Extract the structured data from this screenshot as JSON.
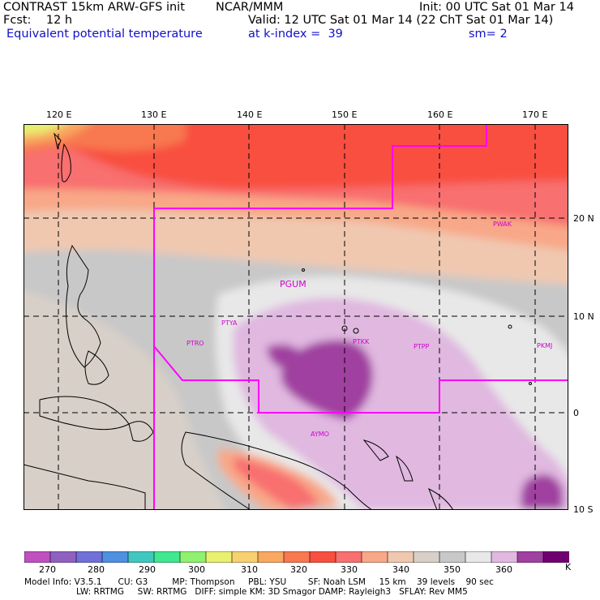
{
  "header": {
    "line1_left": "CONTRAST 15km ARW-GFS init",
    "line1_mid": "NCAR/MMM",
    "line1_right": "Init: 00 UTC Sat 01 Mar 14",
    "line2_left": "Fcst:    12 h",
    "line2_right": "Valid: 12 UTC Sat 01 Mar 14 (22 ChT Sat 01 Mar 14)",
    "line3_left": "Equivalent potential temperature",
    "line3_mid": "at k-index =  39",
    "line3_right": "sm= 2"
  },
  "map": {
    "lon_labels": [
      "120 E",
      "130 E",
      "140 E",
      "150 E",
      "160 E",
      "170 E"
    ],
    "lat_labels": [
      "20 N",
      "10 N",
      "0",
      "10 S"
    ],
    "stations": [
      {
        "name": "PWAK"
      },
      {
        "name": "PGUM"
      },
      {
        "name": "PTYA"
      },
      {
        "name": "PTRO"
      },
      {
        "name": "PTKK"
      },
      {
        "name": "PTPP"
      },
      {
        "name": "PKMJ"
      },
      {
        "name": "AYMO"
      }
    ]
  },
  "colorbar": {
    "labels": [
      "270",
      "280",
      "290",
      "300",
      "310",
      "320",
      "330",
      "340",
      "350",
      "360"
    ],
    "unit": "K",
    "colors": [
      "#c050c0",
      "#9060c0",
      "#7070d8",
      "#4f90e0",
      "#40c8c0",
      "#40e890",
      "#90f070",
      "#e8f070",
      "#f8d070",
      "#f8a860",
      "#f87850",
      "#f85040",
      "#f87070",
      "#f8a888",
      "#f0c8b0",
      "#d8d0c8",
      "#c8c8c8",
      "#e8e8e8",
      "#e0b8e0",
      "#a040a0",
      "#700070"
    ]
  },
  "footer": {
    "line1": "Model Info: V3.5.1      CU: G3         MP: Thompson     PBL: YSU        SF: Noah LSM     15 km    39 levels    90 sec",
    "line2": "LW: RRTMG     SW: RRTMG   DIFF: simple KM: 3D Smagor DAMP: Rayleigh3   SFLAY: Rev MM5"
  }
}
